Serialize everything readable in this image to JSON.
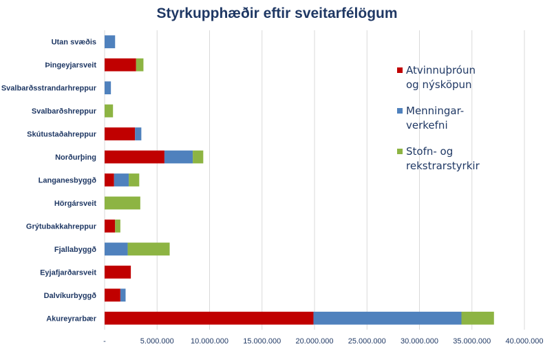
{
  "chart_data": {
    "type": "bar",
    "orientation": "horizontal",
    "stacked": true,
    "title": "Styrkupphæðir eftir sveitarfélögum",
    "categories": [
      "Utan svæðis",
      "Þingeyjarsveit",
      "Svalbarðsstrandarhreppur",
      "Svalbarðshreppur",
      "Skútustaðahreppur",
      "Norðurþing",
      "Langanesbyggð",
      "Hörgársveit",
      "Grýtubakkahreppur",
      "Fjallabyggð",
      "Eyjafjarðarsveit",
      "Dalvíkurbyggð",
      "Akureyrarbær"
    ],
    "series": [
      {
        "name": "Atvinnuþróun og nýsköpun",
        "color": "#c00000",
        "values": [
          0,
          3000000,
          0,
          0,
          2900000,
          5700000,
          900000,
          0,
          1000000,
          0,
          2500000,
          1500000,
          19900000
        ]
      },
      {
        "name": "Menningar-verkefni",
        "color": "#4f81bd",
        "values": [
          1000000,
          0,
          600000,
          0,
          600000,
          2700000,
          1400000,
          0,
          0,
          2200000,
          0,
          500000,
          14100000
        ]
      },
      {
        "name": "Stofn- og rekstrarstyrkir",
        "color": "#8db443",
        "values": [
          0,
          700000,
          0,
          800000,
          0,
          1000000,
          1000000,
          3400000,
          500000,
          4000000,
          0,
          0,
          3100000
        ]
      }
    ],
    "xlim": [
      0,
      40000000
    ],
    "x_ticks": [
      "-",
      "5.000.000",
      "10.000.000",
      "15.000.000",
      "20.000.000",
      "25.000.000",
      "30.000.000",
      "35.000.000",
      "40.000.000"
    ],
    "grid": true,
    "legend_position": "right",
    "legend_lines": [
      [
        "Atvinnuþróun",
        "og nýsköpun"
      ],
      [
        "Menningar-",
        "verkefni"
      ],
      [
        "Stofn- og",
        "rekstrarstyrkir"
      ]
    ]
  }
}
